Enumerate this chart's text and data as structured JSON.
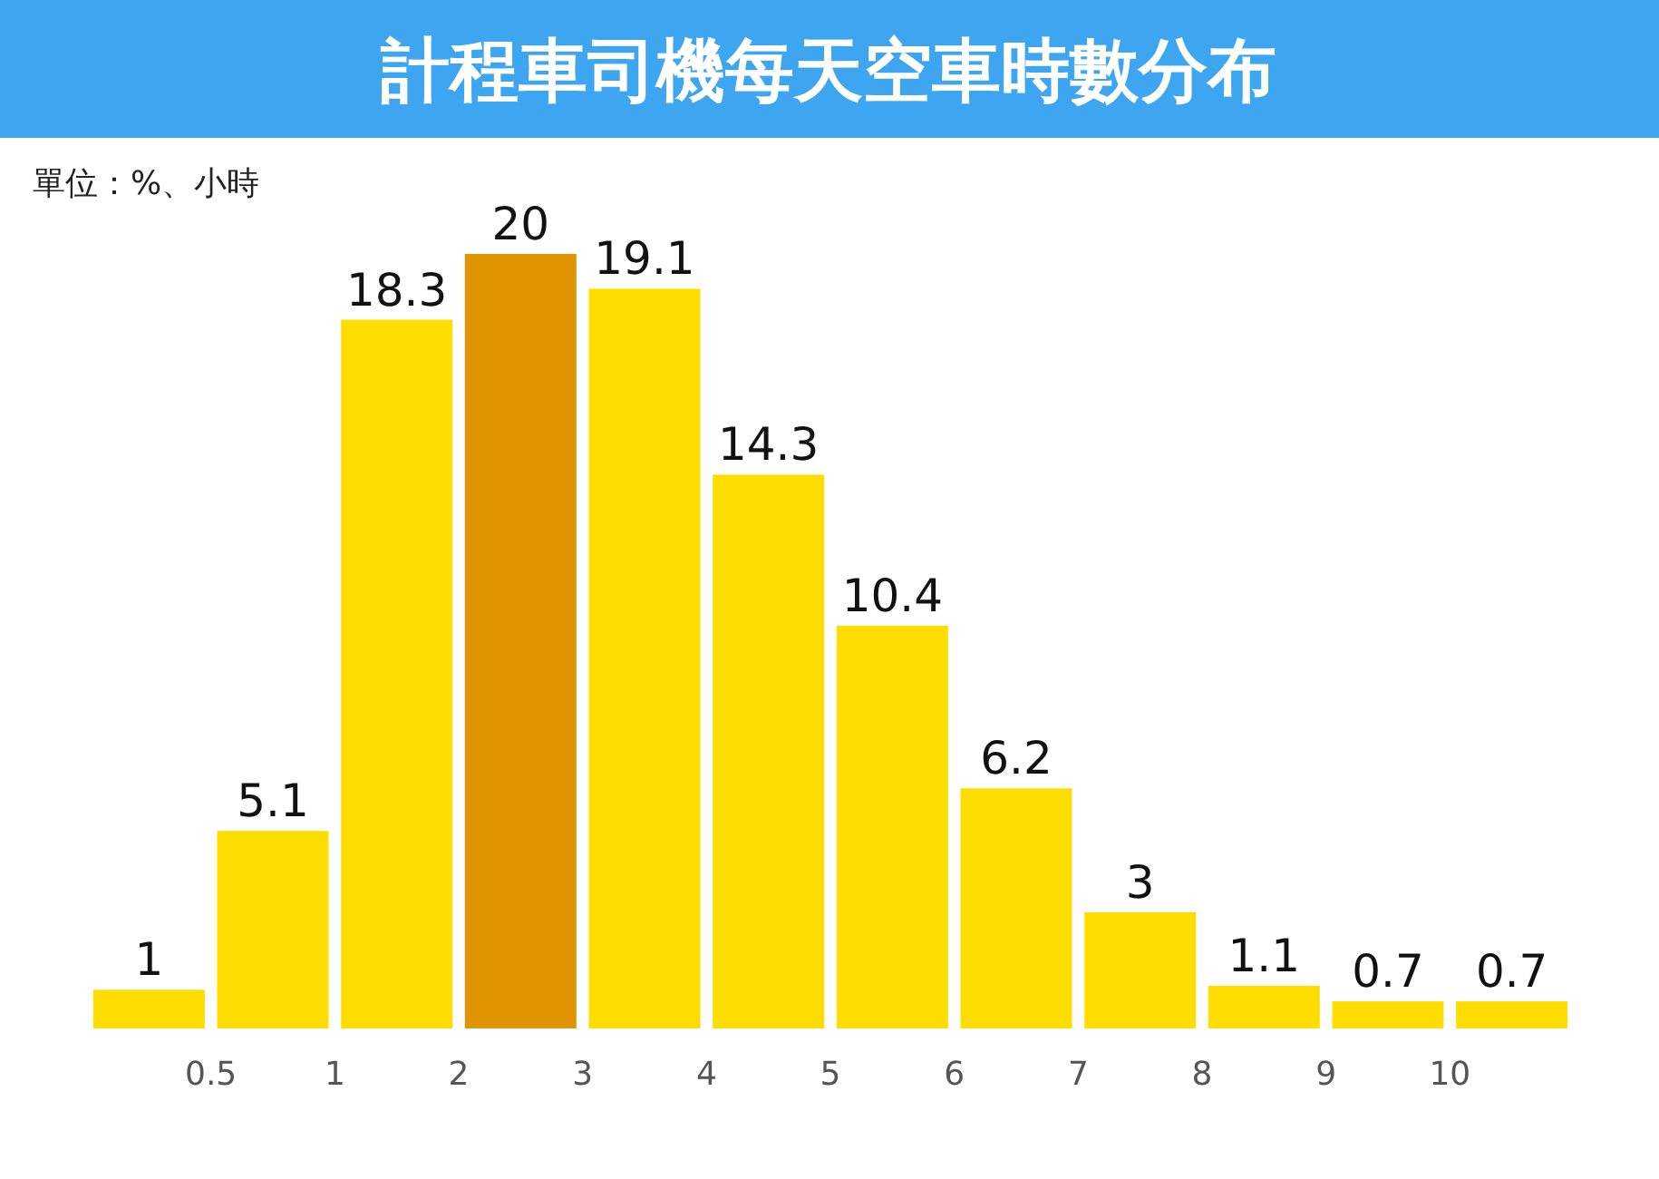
{
  "chart_data": {
    "type": "bar",
    "title": "計程車司機每天空車時數分布",
    "subtitle": "單位：%、小時",
    "categories": [
      null,
      null,
      null,
      null,
      null,
      null,
      null,
      null,
      null,
      null,
      null,
      null
    ],
    "values": [
      1,
      5.1,
      18.3,
      20,
      19.1,
      14.3,
      10.4,
      6.2,
      3,
      1.1,
      0.7,
      0.7
    ],
    "colors": [
      "#ffdd00",
      "#ffdd00",
      "#ffdd00",
      "#e09400",
      "#ffdd00",
      "#ffdd00",
      "#ffdd00",
      "#ffdd00",
      "#ffdd00",
      "#ffdd00",
      "#ffdd00",
      "#ffdd00"
    ],
    "annotations": [
      "0.5",
      "1",
      "2",
      "3",
      "4",
      "5",
      "6",
      "7",
      "8",
      "9",
      "10"
    ],
    "data_labels": true
  }
}
